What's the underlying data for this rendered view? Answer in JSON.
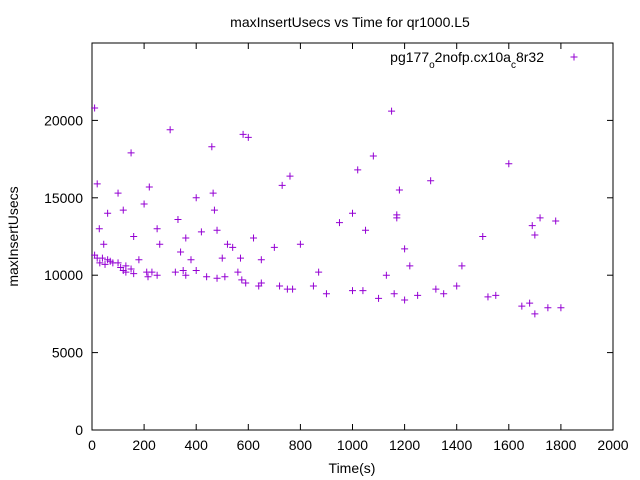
{
  "chart_data": {
    "type": "scatter",
    "title": "maxInsertUsecs vs Time for qr1000.L5",
    "xlabel": "Time(s)",
    "ylabel": "maxInsertUsecs",
    "xlim": [
      0,
      2000
    ],
    "ylim": [
      0,
      25000
    ],
    "x_ticks": [
      0,
      200,
      400,
      600,
      800,
      1000,
      1200,
      1400,
      1600,
      1800,
      2000
    ],
    "y_ticks": [
      0,
      5000,
      10000,
      15000,
      20000
    ],
    "grid": false,
    "legend": {
      "position": "top-right",
      "label_parts": [
        {
          "text": "pg177",
          "sub": false
        },
        {
          "text": "o",
          "sub": true
        },
        {
          "text": "2nofp.cx10a",
          "sub": false
        },
        {
          "text": "c",
          "sub": true
        },
        {
          "text": "8r32",
          "sub": false
        }
      ]
    },
    "series": [
      {
        "name": "pg177_o2nofp.cx10a_c8r32",
        "color": "#9400d3",
        "marker": "plus",
        "x": [
          10,
          10,
          20,
          20,
          28,
          30,
          40,
          45,
          50,
          60,
          60,
          70,
          80,
          100,
          100,
          110,
          120,
          120,
          130,
          130,
          150,
          150,
          160,
          160,
          180,
          200,
          210,
          215,
          220,
          230,
          250,
          250,
          260,
          300,
          320,
          330,
          340,
          350,
          360,
          360,
          380,
          400,
          400,
          420,
          440,
          460,
          465,
          470,
          480,
          480,
          500,
          510,
          520,
          540,
          560,
          570,
          575,
          580,
          590,
          600,
          620,
          640,
          650,
          650,
          700,
          720,
          730,
          750,
          760,
          770,
          800,
          850,
          870,
          900,
          950,
          1000,
          1000,
          1020,
          1040,
          1050,
          1080,
          1100,
          1130,
          1150,
          1160,
          1170,
          1170,
          1180,
          1200,
          1200,
          1220,
          1250,
          1300,
          1320,
          1350,
          1400,
          1420,
          1500,
          1520,
          1550,
          1600,
          1650,
          1680,
          1690,
          1700,
          1700,
          1720,
          1750,
          1780,
          1800
        ],
        "y": [
          20800,
          11300,
          15900,
          11100,
          13000,
          10800,
          11100,
          12000,
          10700,
          11000,
          14000,
          10900,
          10800,
          15300,
          10800,
          10500,
          14200,
          10300,
          10600,
          10200,
          17900,
          10400,
          12500,
          10100,
          11000,
          14600,
          10200,
          9900,
          15700,
          10200,
          13000,
          10000,
          12000,
          19400,
          10200,
          13600,
          11500,
          10300,
          12400,
          10000,
          11000,
          15000,
          10300,
          12800,
          9900,
          18300,
          15300,
          14200,
          12900,
          9800,
          11100,
          9900,
          12000,
          11800,
          10200,
          11100,
          9700,
          19100,
          9500,
          18900,
          12400,
          9300,
          11000,
          9500,
          11800,
          9300,
          15800,
          9100,
          16400,
          9100,
          12000,
          9300,
          10200,
          8800,
          13400,
          9000,
          14000,
          16800,
          9000,
          12900,
          17700,
          8500,
          10000,
          20600,
          8800,
          13900,
          13700,
          15500,
          11700,
          8400,
          10600,
          8700,
          16100,
          9100,
          8800,
          9300,
          10600,
          12500,
          8600,
          8700,
          17200,
          8000,
          8200,
          13200,
          12600,
          7500,
          13700,
          7900,
          13500,
          7900
        ]
      }
    ]
  }
}
